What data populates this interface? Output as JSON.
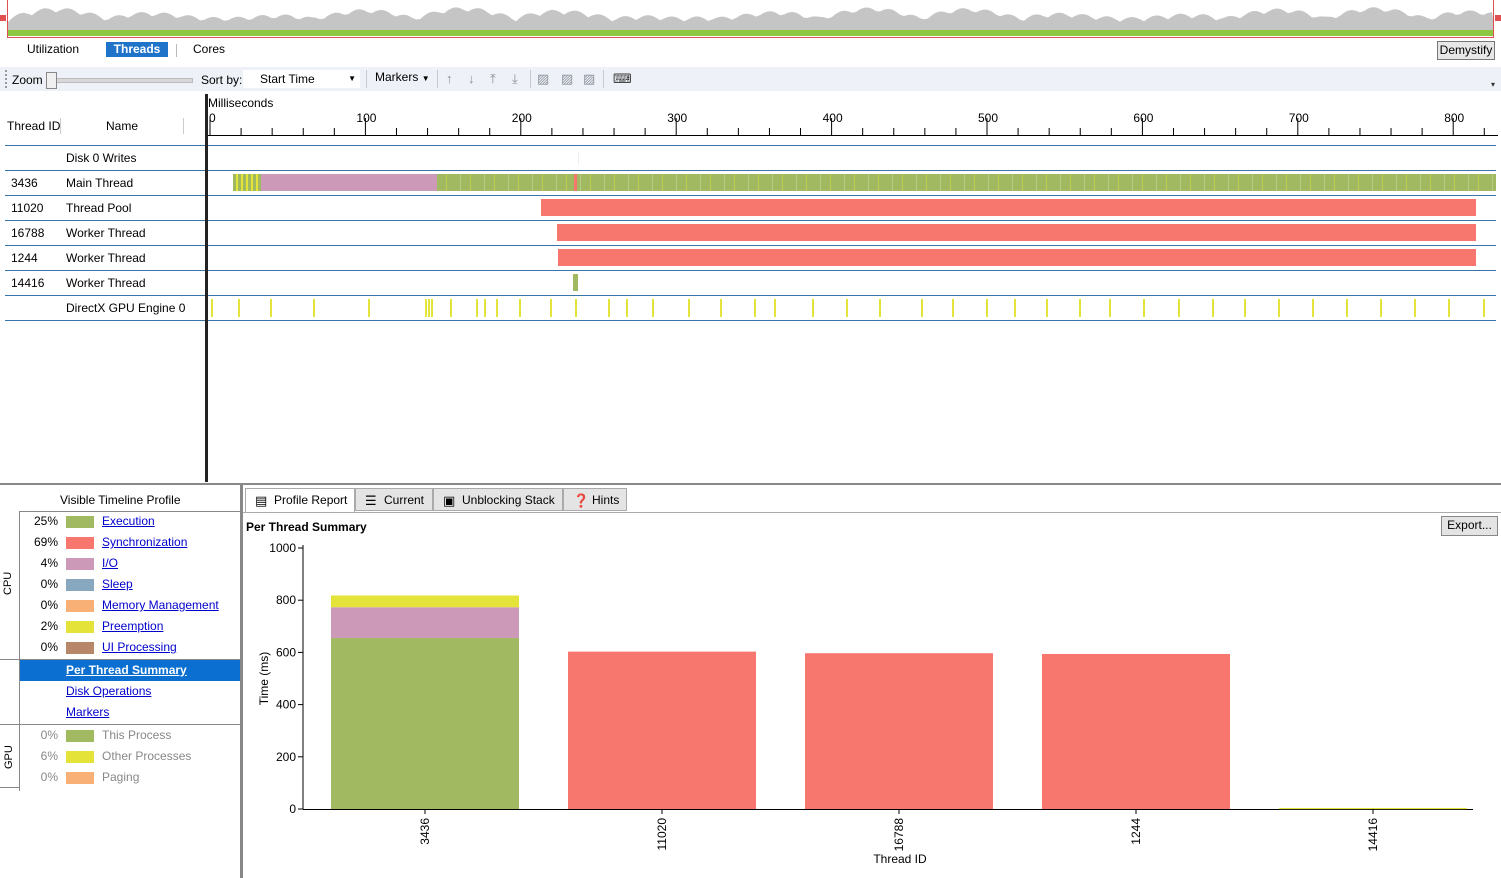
{
  "view_tabs": [
    "Utilization",
    "Threads",
    "Cores"
  ],
  "active_view_tab": "Threads",
  "demystify_label": "Demystify",
  "toolbar": {
    "zoom_label": "Zoom",
    "zoom_level": 0,
    "sort_label": "Sort by:",
    "sort_value": "Start Time",
    "markers_label": "Markers",
    "icons": [
      "arrow-up-icon",
      "arrow-down-icon",
      "move-to-top-icon",
      "move-to-bottom-icon",
      "filter-icon",
      "filter-clear-icon",
      "filter-off-icon",
      "keyboard-icon"
    ]
  },
  "timeline": {
    "unit_label": "Milliseconds",
    "col_thread_id": "Thread ID",
    "col_name": "Name",
    "ticks": [
      "0",
      "100",
      "200",
      "300",
      "400",
      "500",
      "600",
      "700",
      "800"
    ],
    "rows": [
      {
        "id": "",
        "name": "Disk 0 Writes"
      },
      {
        "id": "3436",
        "name": "Main Thread"
      },
      {
        "id": "11020",
        "name": "Thread Pool"
      },
      {
        "id": "16788",
        "name": "Worker Thread"
      },
      {
        "id": "1244",
        "name": "Worker Thread"
      },
      {
        "id": "14416",
        "name": "Worker Thread"
      },
      {
        "id": "",
        "name": "DirectX GPU Engine 0"
      }
    ]
  },
  "profile": {
    "title": "Visible Timeline Profile",
    "cpu_label": "CPU",
    "gpu_label": "GPU",
    "cpu_items": [
      {
        "pct": "25%",
        "label": "Execution",
        "color": "#a1b960"
      },
      {
        "pct": "69%",
        "label": "Synchronization",
        "color": "#f7766e"
      },
      {
        "pct": "4%",
        "label": "I/O",
        "color": "#cc99b9"
      },
      {
        "pct": "0%",
        "label": "Sleep",
        "color": "#87a8bf"
      },
      {
        "pct": "0%",
        "label": "Memory Management",
        "color": "#f8b077"
      },
      {
        "pct": "2%",
        "label": "Preemption",
        "color": "#e3e33a"
      },
      {
        "pct": "0%",
        "label": "UI Processing",
        "color": "#b8876a"
      }
    ],
    "nav_items": [
      "Per Thread Summary",
      "Disk Operations",
      "Markers"
    ],
    "selected_nav": "Per Thread Summary",
    "gpu_items": [
      {
        "pct": "0%",
        "label": "This Process",
        "color": "#a1b960"
      },
      {
        "pct": "6%",
        "label": "Other Processes",
        "color": "#e3e33a"
      },
      {
        "pct": "0%",
        "label": "Paging",
        "color": "#f8b077"
      }
    ]
  },
  "report_tabs": [
    "Profile Report",
    "Current",
    "Unblocking Stack",
    "Hints"
  ],
  "active_report_tab": "Profile Report",
  "export_label": "Export...",
  "chart_data": {
    "type": "bar",
    "title": "Per Thread Summary",
    "xlabel": "Thread ID",
    "ylabel": "Time (ms)",
    "ylim": [
      0,
      1000
    ],
    "yticks": [
      0,
      200,
      400,
      600,
      800,
      1000
    ],
    "categories": [
      "3436",
      "11020",
      "16788",
      "1244",
      "14416"
    ],
    "stacked": true,
    "series": [
      {
        "name": "Execution",
        "color": "#a1b960",
        "values": [
          655,
          0,
          0,
          0,
          3
        ]
      },
      {
        "name": "I/O",
        "color": "#cc99b9",
        "values": [
          118,
          0,
          0,
          0,
          0
        ]
      },
      {
        "name": "Preemption",
        "color": "#e3e33a",
        "values": [
          45,
          0,
          0,
          0,
          1
        ]
      },
      {
        "name": "Synchronization",
        "color": "#f7766e",
        "values": [
          0,
          603,
          597,
          594,
          0
        ]
      }
    ],
    "grid": false,
    "legend": "none"
  }
}
